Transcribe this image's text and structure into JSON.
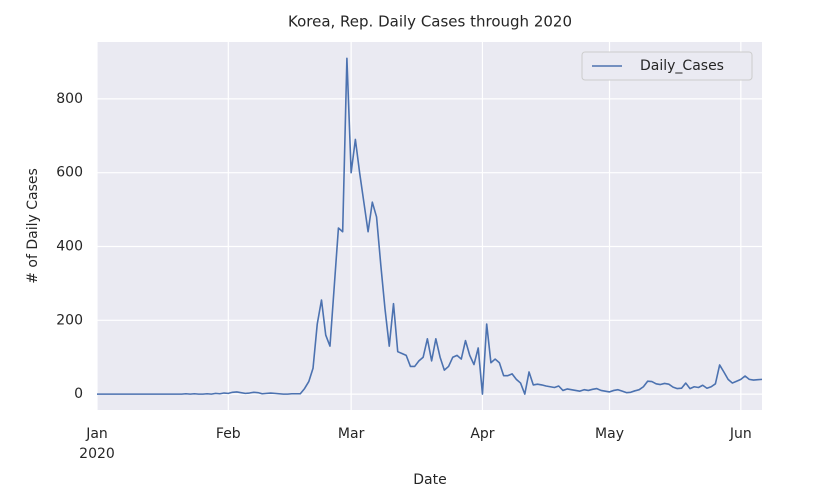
{
  "chart_data": {
    "type": "line",
    "title": "Korea, Rep. Daily Cases through 2020",
    "x_label": "Date",
    "y_label": "# of Daily Cases",
    "x": [
      0,
      1,
      2,
      3,
      4,
      5,
      6,
      7,
      8,
      9,
      10,
      11,
      12,
      13,
      14,
      15,
      16,
      17,
      18,
      19,
      20,
      21,
      22,
      23,
      24,
      25,
      26,
      27,
      28,
      29,
      30,
      31,
      32,
      33,
      34,
      35,
      36,
      37,
      38,
      39,
      40,
      41,
      42,
      43,
      44,
      45,
      46,
      47,
      48,
      49,
      50,
      51,
      52,
      53,
      54,
      55,
      56,
      57,
      58,
      59,
      60,
      61,
      62,
      63,
      64,
      65,
      66,
      67,
      68,
      69,
      70,
      71,
      72,
      73,
      74,
      75,
      76,
      77,
      78,
      79,
      80,
      81,
      82,
      83,
      84,
      85,
      86,
      87,
      88,
      89,
      90,
      91,
      92,
      93,
      94,
      95,
      96,
      97,
      98,
      99,
      100,
      101,
      102,
      103,
      104,
      105,
      106,
      107,
      108,
      109,
      110,
      111,
      112,
      113,
      114,
      115,
      116,
      117,
      118,
      119,
      120,
      121,
      122,
      123,
      124,
      125,
      126,
      127,
      128,
      129,
      130,
      131,
      132,
      133,
      134,
      135,
      136,
      137,
      138,
      139,
      140,
      141,
      142,
      143,
      144,
      145,
      146,
      147,
      148,
      149,
      150,
      151,
      152,
      153,
      154,
      155,
      156,
      157
    ],
    "series": [
      {
        "name": "Daily_Cases",
        "color": "#4c72b0",
        "values": [
          0,
          0,
          0,
          0,
          0,
          0,
          0,
          0,
          0,
          0,
          0,
          0,
          0,
          0,
          0,
          0,
          0,
          0,
          0,
          0,
          0,
          1,
          0,
          1,
          0,
          0,
          1,
          0,
          2,
          1,
          3,
          2,
          5,
          6,
          4,
          2,
          3,
          5,
          4,
          1,
          2,
          3,
          2,
          1,
          0,
          0,
          1,
          1,
          1,
          15,
          34,
          70,
          190,
          255,
          160,
          130,
          290,
          450,
          440,
          910,
          600,
          690,
          600,
          520,
          440,
          520,
          480,
          350,
          230,
          130,
          245,
          115,
          110,
          105,
          75,
          75,
          90,
          100,
          150,
          90,
          150,
          100,
          65,
          75,
          100,
          105,
          95,
          145,
          105,
          80,
          125,
          0,
          190,
          85,
          95,
          85,
          50,
          50,
          55,
          40,
          30,
          0,
          60,
          25,
          27,
          25,
          22,
          20,
          18,
          22,
          10,
          14,
          12,
          10,
          8,
          12,
          10,
          13,
          15,
          10,
          8,
          6,
          10,
          12,
          8,
          4,
          5,
          9,
          12,
          20,
          35,
          34,
          28,
          26,
          29,
          27,
          19,
          15,
          16,
          30,
          15,
          20,
          18,
          24,
          16,
          20,
          28,
          79,
          60,
          40,
          30,
          35,
          40,
          49,
          40,
          38,
          39,
          40
        ]
      }
    ],
    "xlim": [
      0,
      157
    ],
    "xticks": [
      {
        "value": 0,
        "label": "Jan 2020"
      },
      {
        "value": 31,
        "label": "Feb"
      },
      {
        "value": 60,
        "label": "Mar"
      },
      {
        "value": 91,
        "label": "Apr"
      },
      {
        "value": 121,
        "label": "May"
      },
      {
        "value": 152,
        "label": "Jun"
      }
    ],
    "ylim": [
      -43,
      954
    ],
    "yticks": [
      0,
      200,
      400,
      600,
      800
    ],
    "grid": true,
    "legend": "upper right"
  }
}
